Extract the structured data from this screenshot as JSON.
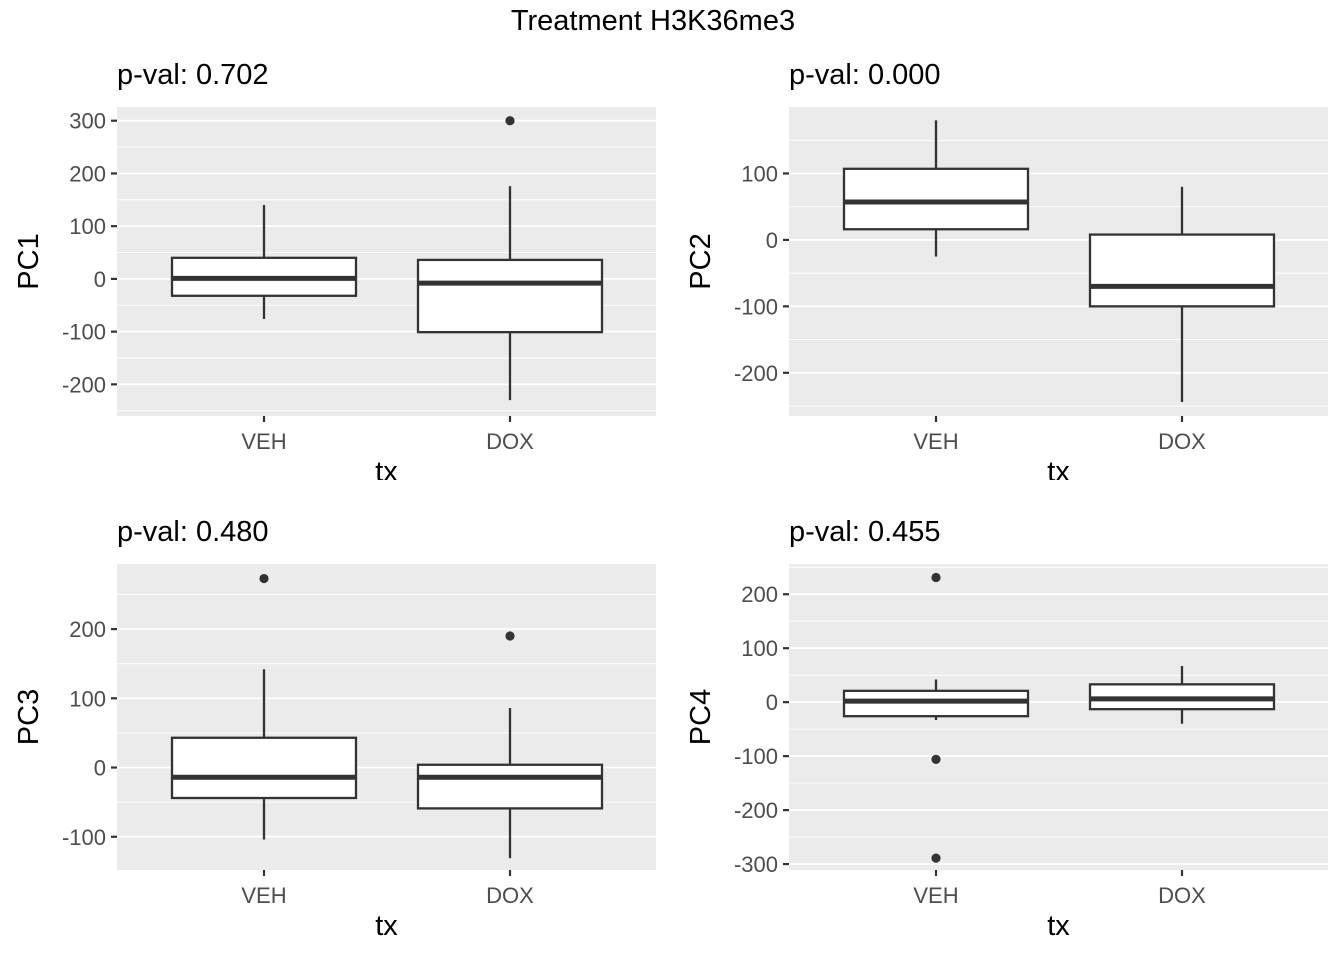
{
  "title": "Treatment H3K36me3",
  "chart_data": {
    "type": "boxplot",
    "layout": "2x2-grid",
    "title": "Treatment H3K36me3",
    "xlabel": "tx",
    "categories": [
      "VEH",
      "DOX"
    ],
    "legend": "none",
    "grid": true,
    "colors": {
      "panel_bg": "#EBEBEB",
      "grid": "#FFFFFF",
      "box": "#333333",
      "box_fill": "#FFFFFF",
      "tick_text": "#4D4D4D",
      "title_text": "#000000"
    },
    "panels": [
      {
        "id": "pc1",
        "ylabel": "PC1",
        "pval_label": "p-val: 0.702",
        "pval": 0.702,
        "ylim": [
          -260,
          326
        ],
        "yticks": [
          -200,
          -100,
          0,
          100,
          200,
          300
        ],
        "boxes": [
          {
            "category": "VEH",
            "whisker_low": -76,
            "q1": -32,
            "median": 1,
            "q3": 40,
            "whisker_high": 140,
            "outliers": []
          },
          {
            "category": "DOX",
            "whisker_low": -230,
            "q1": -101,
            "median": -8,
            "q3": 36,
            "whisker_high": 176,
            "outliers": [
              300
            ]
          }
        ]
      },
      {
        "id": "pc2",
        "ylabel": "PC2",
        "pval_label": "p-val: 0.000",
        "pval": 0.0,
        "ylim": [
          -265,
          200
        ],
        "yticks": [
          -200,
          -100,
          0,
          100
        ],
        "boxes": [
          {
            "category": "VEH",
            "whisker_low": -25,
            "q1": 16,
            "median": 57,
            "q3": 107,
            "whisker_high": 180,
            "outliers": []
          },
          {
            "category": "DOX",
            "whisker_low": -244,
            "q1": -100,
            "median": -70,
            "q3": 8,
            "whisker_high": 80,
            "outliers": []
          }
        ]
      },
      {
        "id": "pc3",
        "ylabel": "PC3",
        "pval_label": "p-val: 0.480",
        "pval": 0.48,
        "ylim": [
          -148,
          294
        ],
        "yticks": [
          -100,
          0,
          100,
          200
        ],
        "boxes": [
          {
            "category": "VEH",
            "whisker_low": -104,
            "q1": -44,
            "median": -14,
            "q3": 43,
            "whisker_high": 142,
            "outliers": [
              273
            ]
          },
          {
            "category": "DOX",
            "whisker_low": -131,
            "q1": -59,
            "median": -14,
            "q3": 4,
            "whisker_high": 86,
            "outliers": [
              190
            ]
          }
        ]
      },
      {
        "id": "pc4",
        "ylabel": "PC4",
        "pval_label": "p-val: 0.455",
        "pval": 0.455,
        "ylim": [
          -311,
          256
        ],
        "yticks": [
          -300,
          -200,
          -100,
          0,
          100,
          200
        ],
        "boxes": [
          {
            "category": "VEH",
            "whisker_low": -33,
            "q1": -26,
            "median": 2,
            "q3": 21,
            "whisker_high": 42,
            "outliers": [
              231,
              -106,
              -289
            ]
          },
          {
            "category": "DOX",
            "whisker_low": -40,
            "q1": -13,
            "median": 6,
            "q3": 33,
            "whisker_high": 67,
            "outliers": []
          }
        ]
      }
    ]
  }
}
